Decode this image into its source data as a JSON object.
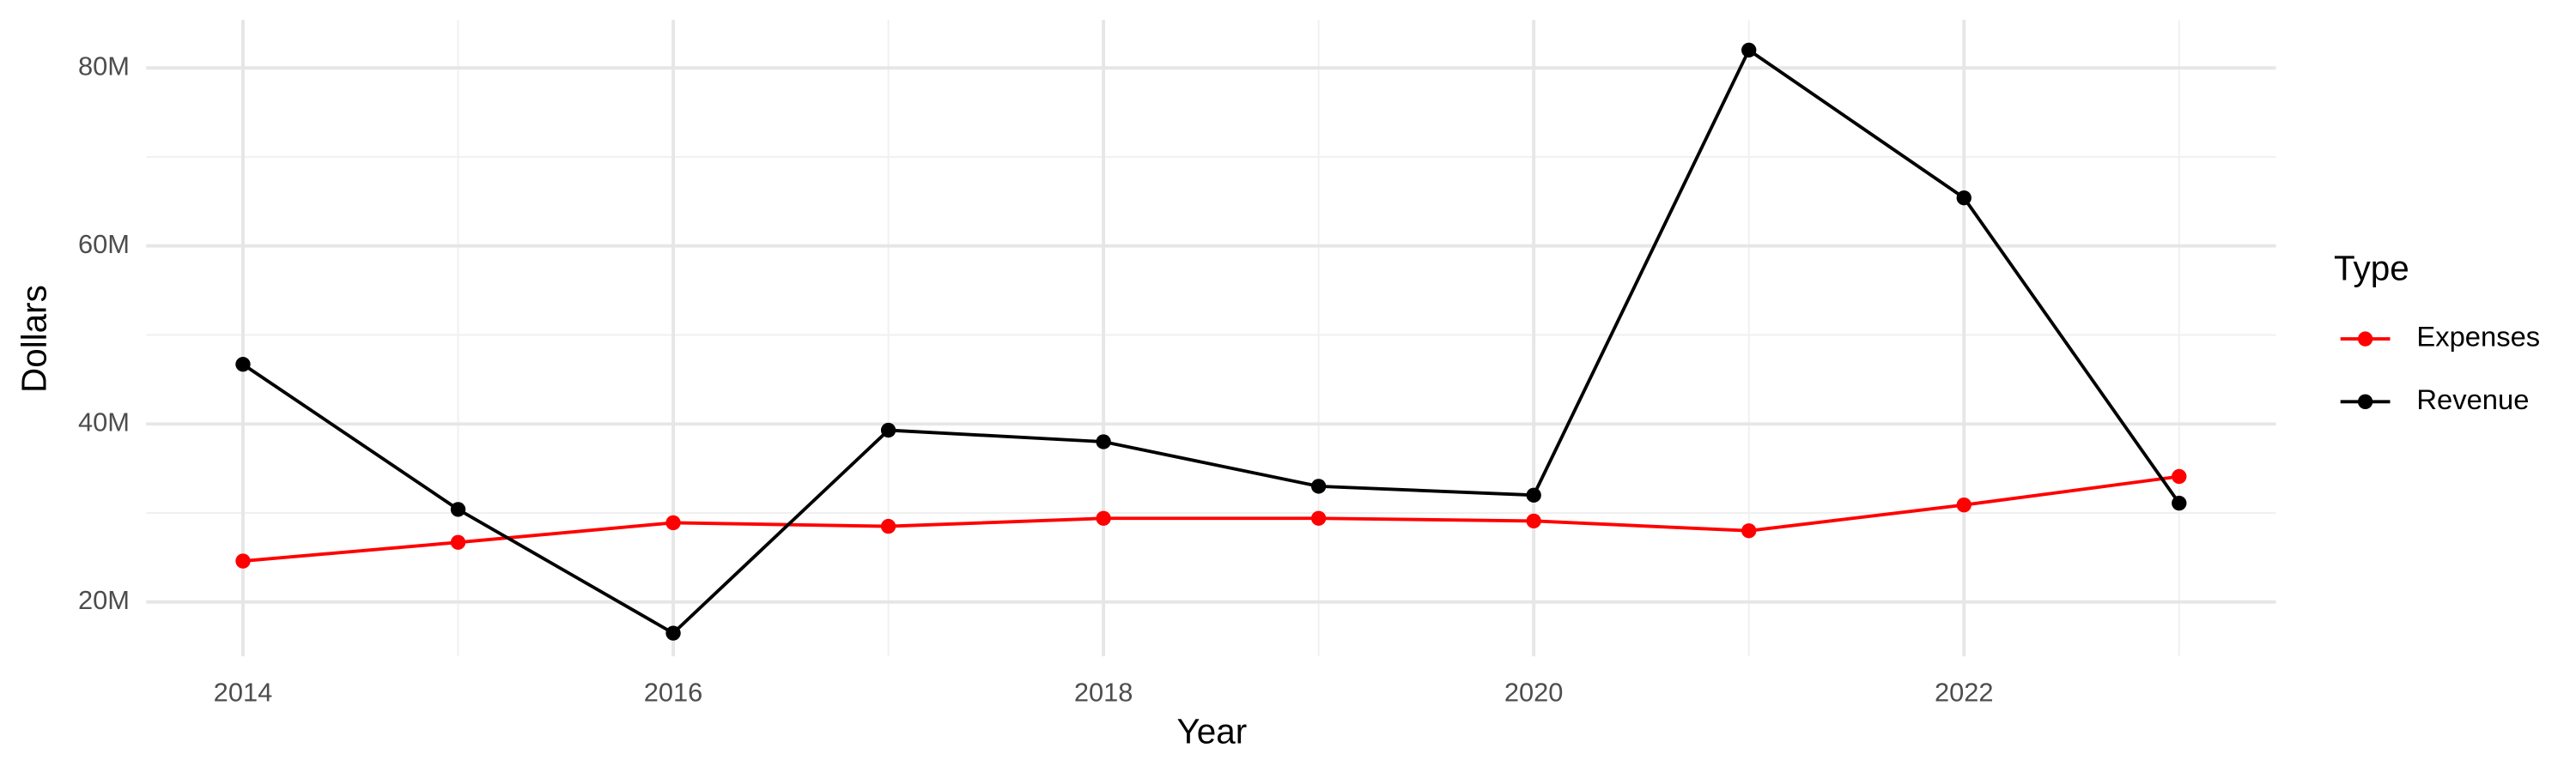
{
  "chart_data": {
    "type": "line",
    "x_label": "Year",
    "y_label": "Dollars",
    "legend_title": "Type",
    "x": [
      2014,
      2015,
      2016,
      2017,
      2018,
      2019,
      2020,
      2021,
      2022,
      2023
    ],
    "series": [
      {
        "name": "Expenses",
        "color": "#ff0000",
        "values": [
          24600000,
          26700000,
          28900000,
          28500000,
          29400000,
          29400000,
          29100000,
          28000000,
          30900000,
          34100000
        ]
      },
      {
        "name": "Revenue",
        "color": "#000000",
        "values": [
          46700000,
          30400000,
          16500000,
          39300000,
          38000000,
          33000000,
          32000000,
          82000000,
          65400000,
          31100000
        ]
      }
    ],
    "xlim": [
      2013.55,
      2023.45
    ],
    "xticks": [
      2014,
      2016,
      2018,
      2020,
      2022
    ],
    "ylim": [
      13900000,
      85400000
    ],
    "yticks": [
      {
        "value": 20000000,
        "label": "20M"
      },
      {
        "value": 40000000,
        "label": "40M"
      },
      {
        "value": 60000000,
        "label": "60M"
      },
      {
        "value": 80000000,
        "label": "80M"
      }
    ],
    "grid": true,
    "legend": "right"
  }
}
